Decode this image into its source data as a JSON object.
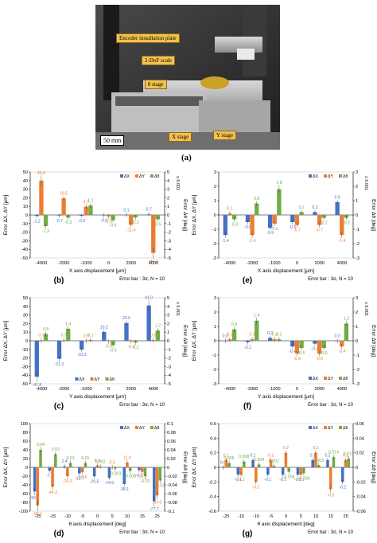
{
  "figure": {
    "photo": {
      "labels": {
        "encoder": "Encoder installation plate",
        "scale2dof": "2-DoF scale",
        "theta_stage": "θ stage",
        "x_stage": "X stage",
        "y_stage": "Y stage",
        "scale_bar": "50 mm"
      },
      "letter": "(a)"
    },
    "colors": {
      "dx": "#4472c4",
      "dy": "#ed7d31",
      "dtheta": "#70ad47"
    }
  },
  "chart_data": [
    {
      "id": "b",
      "letter": "(b)",
      "type": "bar",
      "categories": [
        "-4000",
        "-2000",
        "-1000",
        "0",
        "2000",
        "4000"
      ],
      "xlabel": "X axis displacement [μm]",
      "ylabel": "Error ΔX, ΔY [μm]",
      "y2label": "Error Δθ [deg]",
      "y2unit": "x 0.001",
      "ylim": [
        -50,
        50
      ],
      "yticks": [
        -50,
        -40,
        -30,
        -20,
        -10,
        0,
        10,
        20,
        30,
        40,
        50
      ],
      "y2lim": [
        -5,
        5
      ],
      "y2ticks": [
        -5,
        -4,
        -3,
        -2,
        -1,
        0,
        1,
        2,
        3,
        4,
        5
      ],
      "note": "Error bar : 3σ, N = 10",
      "legend_position": "top-right",
      "series": [
        {
          "name": "ΔX",
          "axis": "left",
          "values": [
            -1.2,
            -0.7,
            -0.9,
            -0.6,
            0.1,
            0.7
          ],
          "labels": [
            "-1.2",
            "-0.7",
            "-0.9",
            "-0.6",
            "0.1",
            "0.7"
          ]
        },
        {
          "name": "ΔY",
          "axis": "left",
          "values": [
            40.0,
            19.5,
            9.7,
            -1.6,
            -11.4,
            -44.1
          ],
          "labels": [
            "40.0",
            "19.5",
            "9.7",
            "-1.6",
            "-11.4",
            "-44.1"
          ]
        },
        {
          "name": "Δθ",
          "axis": "right",
          "values": [
            -1.3,
            -0.3,
            1.1,
            -0.6,
            -0.3,
            -0.5
          ],
          "labels": [
            "-1.3",
            "-0.3",
            "1.1",
            "-0.6",
            "-0.3",
            "-0.5"
          ]
        }
      ]
    },
    {
      "id": "e",
      "letter": "(e)",
      "type": "bar",
      "categories": [
        "-4000",
        "-2000",
        "-1000",
        "0",
        "2000",
        "4000"
      ],
      "xlabel": "X axis displacement [μm]",
      "ylabel": "Error ΔX, ΔY [μm]",
      "y2label": "Error Δθ [deg]",
      "y2unit": "x 0.001",
      "ylim": [
        -3,
        3
      ],
      "yticks": [
        -3,
        -2,
        -1,
        0,
        1,
        2,
        3
      ],
      "y2lim": [
        -3,
        3
      ],
      "y2ticks": [
        -3,
        -2,
        -1,
        0,
        1,
        2,
        3
      ],
      "note": "Error bar : 3σ, N = 10",
      "legend_position": "top-right",
      "series": [
        {
          "name": "ΔX",
          "axis": "left",
          "values": [
            -1.4,
            -0.5,
            -0.9,
            -0.5,
            0.2,
            0.9
          ],
          "labels": [
            "-1.4",
            "-0.5",
            "-0.9",
            "-0.5",
            "0.2",
            "0.9"
          ]
        },
        {
          "name": "ΔY",
          "axis": "left",
          "values": [
            0.1,
            -1.4,
            -0.6,
            -0.7,
            -0.7,
            -1.4
          ],
          "labels": [
            "0.1",
            "-1.4",
            "-0.6",
            "-0.7",
            "-0.7",
            "-1.4"
          ]
        },
        {
          "name": "Δθ",
          "axis": "right",
          "values": [
            -0.3,
            0.8,
            1.8,
            0.2,
            -0.2,
            -0.2
          ],
          "labels": [
            "-0.3",
            "0.8",
            "1.8",
            "0.2",
            "-0.2",
            "-0.2"
          ]
        }
      ]
    },
    {
      "id": "c",
      "letter": "(c)",
      "type": "bar",
      "categories": [
        "-4000",
        "-2000",
        "-1000",
        "0",
        "2000",
        "4000"
      ],
      "xlabel": "Y axis displacement [μm]",
      "ylabel": "Error ΔX, ΔY [μm]",
      "y2label": "Error Δθ [deg]",
      "y2unit": "x 0.001",
      "ylim": [
        -50,
        50
      ],
      "yticks": [
        -50,
        -40,
        -30,
        -20,
        -10,
        0,
        10,
        20,
        30,
        40,
        50
      ],
      "y2lim": [
        -5,
        5
      ],
      "y2ticks": [
        -5,
        -4,
        -3,
        -2,
        -1,
        0,
        1,
        2,
        3,
        4,
        5
      ],
      "note": "Error bar : 3σ, N = 10",
      "legend_position": "bottom-center",
      "series": [
        {
          "name": "ΔX",
          "axis": "left",
          "values": [
            -41.8,
            -21.0,
            -10.3,
            10.2,
            20.6,
            41.0
          ],
          "labels": [
            "-41.8",
            "-21.0",
            "-10.3",
            "10.2",
            "20.6",
            "41.0"
          ]
        },
        {
          "name": "ΔY",
          "axis": "left",
          "values": [
            0.7,
            0.7,
            0.0,
            -0.6,
            -0.7,
            0.8
          ],
          "labels": [
            "0.7",
            "0.7",
            "0.0",
            "-0.6",
            "-0.7",
            "0.8"
          ]
        },
        {
          "name": "Δθ",
          "axis": "right",
          "values": [
            0.8,
            1.4,
            0.1,
            -0.5,
            -0.2,
            1.2
          ],
          "labels": [
            "0.8",
            "1.4",
            "0.1",
            "-0.5",
            "-0.2",
            "1.2"
          ]
        }
      ]
    },
    {
      "id": "f",
      "letter": "(f)",
      "type": "bar",
      "categories": [
        "-4000",
        "-2000",
        "-1000",
        "0",
        "2000",
        "4000"
      ],
      "xlabel": "Y axis displacement [μm]",
      "ylabel": "Error ΔX, ΔY [μm]",
      "y2label": "Error Δθ [deg]",
      "y2unit": "x 0.001",
      "ylim": [
        -3,
        3
      ],
      "yticks": [
        -3,
        -2,
        -1,
        0,
        1,
        2,
        3
      ],
      "y2lim": [
        -3,
        3
      ],
      "y2ticks": [
        -3,
        -2,
        -1,
        0,
        1,
        2,
        3
      ],
      "note": "Error bar : 3σ, N = 10",
      "legend_position": "bottom-right",
      "series": [
        {
          "name": "ΔX",
          "axis": "left",
          "values": [
            0.0,
            -0.1,
            0.2,
            -0.4,
            -0.2,
            0.0
          ],
          "labels": [
            "0.0",
            "-0.1",
            "0.2",
            "-0.4",
            "-0.2",
            "0.0"
          ]
        },
        {
          "name": "ΔY",
          "axis": "left",
          "values": [
            0.1,
            0.1,
            0.1,
            -0.9,
            -0.9,
            -0.4
          ],
          "labels": [
            "0.1",
            "0.1",
            "0.1",
            "-0.9",
            "-0.9",
            "-0.4"
          ]
        },
        {
          "name": "Δθ",
          "axis": "right",
          "values": [
            0.8,
            1.4,
            0.1,
            -0.5,
            -0.5,
            1.2
          ],
          "labels": [
            "0.8",
            "1.4",
            "0.1",
            "-0.5",
            "-0.5",
            "1.2"
          ]
        }
      ]
    },
    {
      "id": "d",
      "letter": "(d)",
      "type": "bar",
      "categories": [
        "-25",
        "-15",
        "-10",
        "-5",
        "0",
        "5",
        "10",
        "15",
        "25"
      ],
      "xlabel": "θ axis displacement [deg]",
      "ylabel": "Error ΔX, ΔY [μm]",
      "y2label": "Error Δθ [deg]",
      "ylim": [
        -100,
        100
      ],
      "yticks": [
        -100,
        -80,
        -60,
        -40,
        -20,
        0,
        20,
        40,
        60,
        80,
        100
      ],
      "y2lim": [
        -0.1,
        0.1
      ],
      "y2ticks": [
        -0.1,
        -0.08,
        -0.06,
        -0.04,
        -0.02,
        0,
        0.02,
        0.04,
        0.06,
        0.08,
        0.1
      ],
      "note": "Error bar : 3σ, N = 10",
      "legend_position": "top-right",
      "series": [
        {
          "name": "ΔX",
          "axis": "left",
          "values": [
            -55.1,
            -7.7,
            2.4,
            -13.7,
            -20.5,
            -24.0,
            -38.1,
            -6.1,
            -77.7
          ],
          "labels": [
            "-55.1",
            "-7.7",
            "2.4",
            "-13.7",
            "-20.5",
            "-24.0",
            "-38.1",
            "-6.1",
            "-77.7"
          ]
        },
        {
          "name": "ΔY",
          "axis": "left",
          "values": [
            -87.1,
            -44.3,
            -20.0,
            -10.6,
            4.5,
            0.2,
            11.0,
            -10.1,
            -64.0
          ],
          "labels": [
            "-87.1",
            "-44.3",
            "-20.0",
            "-10.6",
            "4.5",
            "0.2",
            "11.0",
            "-10.1",
            "-64.0"
          ]
        },
        {
          "name": "Δθ",
          "axis": "right",
          "values": [
            0.04,
            0.03,
            0.01,
            0.01,
            0.002,
            -0.003,
            -0.008,
            -0.02,
            -0.03
          ],
          "labels": [
            "0.04",
            "0.03",
            "0.01",
            "0.01",
            "0.002",
            "-0.003",
            "-0.008",
            "-0.02",
            "-0.03"
          ]
        }
      ]
    },
    {
      "id": "g",
      "letter": "(g)",
      "type": "bar",
      "categories": [
        "-25",
        "-15",
        "-10",
        "-5",
        "0",
        "5",
        "10",
        "15",
        "25"
      ],
      "xlabel": "θ axis displacement [deg]",
      "ylabel": "Error ΔX, ΔY [μm]",
      "y2label": "Error Δθ [deg]",
      "ylim": [
        -0.6,
        0.6
      ],
      "yticks": [
        -0.6,
        -0.4,
        -0.2,
        0,
        0.2,
        0.4,
        0.6
      ],
      "y2lim": [
        -0.06,
        0.06
      ],
      "y2ticks": [
        -0.06,
        -0.04,
        -0.02,
        0,
        0.02,
        0.04,
        0.06
      ],
      "note": "Error bar : 3σ, N = 10",
      "legend_position": "top-right",
      "series": [
        {
          "name": "ΔX",
          "axis": "left",
          "values": [
            0.0,
            -0.1,
            0.1,
            -0.1,
            -0.1,
            -0.1,
            0.1,
            0.1,
            -0.2
          ],
          "labels": [
            "0.0",
            "-0.1",
            "0.1",
            "-0.1",
            "-0.1",
            "-0.1",
            "0.1",
            "0.1",
            "-0.2"
          ]
        },
        {
          "name": "ΔY",
          "axis": "left",
          "values": [
            0.1,
            -0.1,
            -0.2,
            0.1,
            0.2,
            -0.1,
            0.2,
            -0.3,
            0.1
          ],
          "labels": [
            "0.1",
            "-0.1",
            "-0.2",
            "0.1",
            "0.2",
            "-0.1",
            "0.2",
            "-0.3",
            "0.1"
          ]
        },
        {
          "name": "Δθ",
          "axis": "right",
          "values": [
            0.006,
            0.008,
            0.004,
            0.002,
            -0.006,
            -0.008,
            0.003,
            0.014,
            0.012
          ],
          "labels": [
            "0.006",
            "0.008",
            "0.004",
            "0.002",
            "-0.006",
            "-0.008",
            "0.003",
            "0.014",
            "0.012"
          ]
        }
      ]
    }
  ]
}
